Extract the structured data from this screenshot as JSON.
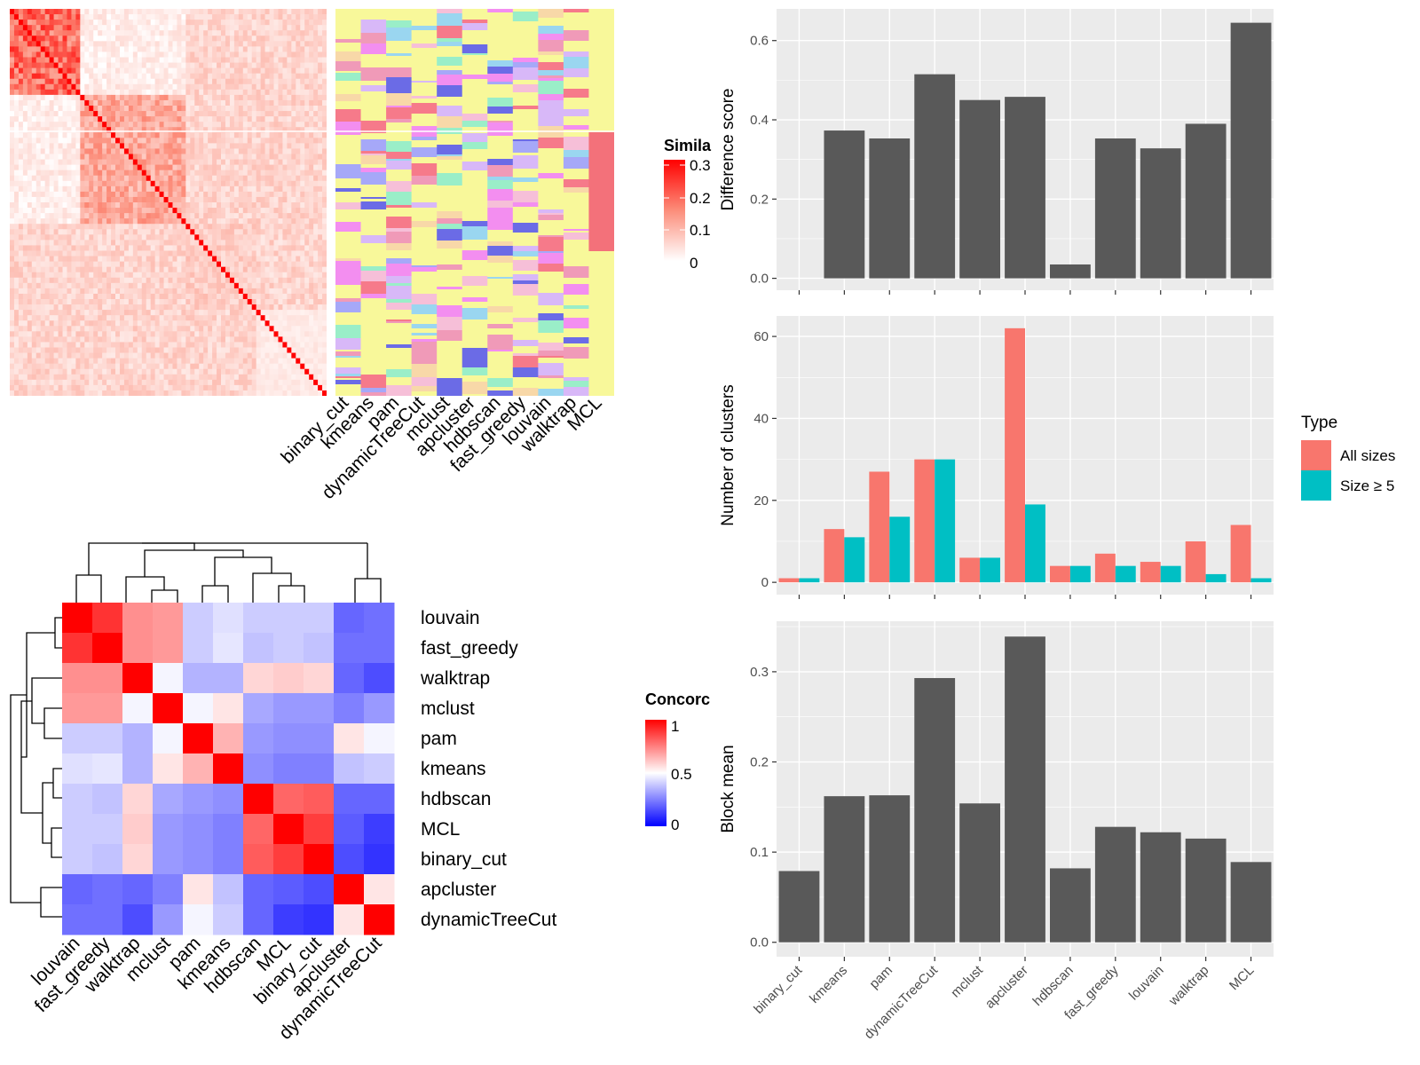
{
  "colors": {
    "panel_bg": "#ebebeb",
    "grid": "#ffffff",
    "bar": "#595959",
    "all_sizes": "#f8766d",
    "size_ge_5": "#00bfc4",
    "heat_high": "#ff0000",
    "heat_mid": "#ffffff",
    "heat_low": "#0000ff",
    "yellow": "#f8f89a"
  },
  "chart_data": [
    {
      "id": "similarity_heatmap",
      "type": "heatmap",
      "legend_title": "Simila",
      "legend_ticks": [
        "0.3",
        "0.2",
        "0.1",
        "0"
      ],
      "legend_range": [
        0,
        0.32
      ]
    },
    {
      "id": "cluster_annotation_heatmap",
      "type": "heatmap",
      "columns": [
        "binary_cut",
        "kmeans",
        "pam",
        "dynamicTreeCut",
        "mclust",
        "apcluster",
        "hdbscan",
        "fast_greedy",
        "louvain",
        "walktrap",
        "MCL"
      ]
    },
    {
      "id": "concordance_heatmap",
      "type": "heatmap",
      "legend_title": "Concorc",
      "legend_ticks": [
        "1",
        "0.5",
        "0"
      ],
      "legend_range": [
        0,
        1
      ],
      "rows": [
        "louvain",
        "fast_greedy",
        "walktrap",
        "mclust",
        "pam",
        "kmeans",
        "hdbscan",
        "MCL",
        "binary_cut",
        "apcluster",
        "dynamicTreeCut"
      ],
      "columns": [
        "louvain",
        "fast_greedy",
        "walktrap",
        "mclust",
        "pam",
        "kmeans",
        "hdbscan",
        "MCL",
        "binary_cut",
        "apcluster",
        "dynamicTreeCut"
      ],
      "values": [
        [
          1.0,
          0.9,
          0.72,
          0.7,
          0.4,
          0.44,
          0.4,
          0.4,
          0.4,
          0.2,
          0.22
        ],
        [
          0.9,
          1.0,
          0.72,
          0.7,
          0.4,
          0.45,
          0.38,
          0.4,
          0.38,
          0.22,
          0.22
        ],
        [
          0.72,
          0.72,
          1.0,
          0.48,
          0.35,
          0.35,
          0.58,
          0.6,
          0.58,
          0.2,
          0.15
        ],
        [
          0.7,
          0.7,
          0.48,
          1.0,
          0.48,
          0.55,
          0.33,
          0.3,
          0.3,
          0.25,
          0.3
        ],
        [
          0.4,
          0.4,
          0.35,
          0.48,
          1.0,
          0.65,
          0.3,
          0.28,
          0.28,
          0.55,
          0.48
        ],
        [
          0.44,
          0.45,
          0.35,
          0.55,
          0.65,
          1.0,
          0.28,
          0.25,
          0.25,
          0.38,
          0.4
        ],
        [
          0.4,
          0.38,
          0.58,
          0.33,
          0.3,
          0.28,
          1.0,
          0.8,
          0.82,
          0.2,
          0.2
        ],
        [
          0.4,
          0.4,
          0.6,
          0.3,
          0.28,
          0.25,
          0.8,
          1.0,
          0.88,
          0.18,
          0.12
        ],
        [
          0.4,
          0.38,
          0.58,
          0.3,
          0.28,
          0.25,
          0.82,
          0.88,
          1.0,
          0.15,
          0.1
        ],
        [
          0.2,
          0.22,
          0.2,
          0.25,
          0.55,
          0.38,
          0.2,
          0.18,
          0.15,
          1.0,
          0.55
        ],
        [
          0.22,
          0.22,
          0.15,
          0.3,
          0.48,
          0.4,
          0.2,
          0.12,
          0.1,
          0.55,
          1.0
        ]
      ]
    },
    {
      "id": "difference_score",
      "type": "bar",
      "ylabel": "Difference score",
      "categories": [
        "binary_cut",
        "kmeans",
        "pam",
        "dynamicTreeCut",
        "mclust",
        "apcluster",
        "hdbscan",
        "fast_greedy",
        "louvain",
        "walktrap",
        "MCL"
      ],
      "values": [
        0,
        0.373,
        0.353,
        0.515,
        0.45,
        0.458,
        0.035,
        0.353,
        0.328,
        0.39,
        0.645
      ],
      "ylim": [
        -0.03,
        0.68
      ],
      "yticks": [
        "0.0",
        "0.2",
        "0.4",
        "0.6"
      ]
    },
    {
      "id": "number_of_clusters",
      "type": "bar",
      "ylabel": "Number of clusters",
      "categories": [
        "binary_cut",
        "kmeans",
        "pam",
        "dynamicTreeCut",
        "mclust",
        "apcluster",
        "hdbscan",
        "fast_greedy",
        "louvain",
        "walktrap",
        "MCL"
      ],
      "series": [
        {
          "name": "All sizes",
          "values": [
            1,
            13,
            27,
            30,
            6,
            62,
            4,
            7,
            5,
            10,
            14
          ]
        },
        {
          "name": "Size ≥ 5",
          "values": [
            1,
            11,
            16,
            30,
            6,
            19,
            4,
            4,
            4,
            2,
            1
          ]
        }
      ],
      "ylim": [
        -3,
        65
      ],
      "yticks": [
        "0",
        "20",
        "40",
        "60"
      ],
      "legend_title": "Type",
      "legend_position": "right"
    },
    {
      "id": "block_mean",
      "type": "bar",
      "ylabel": "Block mean",
      "categories": [
        "binary_cut",
        "kmeans",
        "pam",
        "dynamicTreeCut",
        "mclust",
        "apcluster",
        "hdbscan",
        "fast_greedy",
        "louvain",
        "walktrap",
        "MCL"
      ],
      "values": [
        0.079,
        0.162,
        0.163,
        0.293,
        0.154,
        0.339,
        0.082,
        0.128,
        0.122,
        0.115,
        0.089
      ],
      "ylim": [
        -0.016,
        0.356
      ],
      "yticks": [
        "0.0",
        "0.1",
        "0.2",
        "0.3"
      ]
    }
  ]
}
